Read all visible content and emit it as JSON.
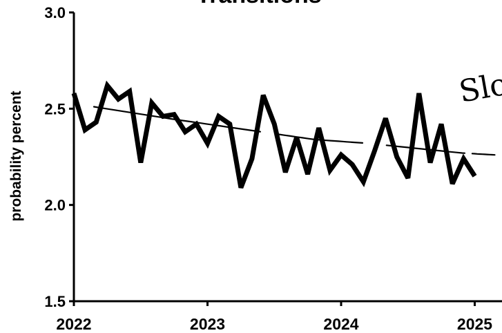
{
  "chart_data": {
    "type": "line",
    "title": "Transitions",
    "xlabel": "",
    "ylabel": "probability percent",
    "ylim": [
      1.5,
      3.0
    ],
    "xlim": [
      2022.0,
      2025.15
    ],
    "yticks": [
      "1.5",
      "2.0",
      "2.5",
      "3.0"
    ],
    "xticks": [
      "2022",
      "2023",
      "2024",
      "2025"
    ],
    "series": [
      {
        "x": [
          2022.0,
          2022.083,
          2022.167,
          2022.25,
          2022.333,
          2022.417,
          2022.5,
          2022.583,
          2022.667,
          2022.75,
          2022.833,
          2022.917,
          2023.0,
          2023.083,
          2023.167,
          2023.25,
          2023.333,
          2023.417,
          2023.5,
          2023.583,
          2023.667,
          2023.75,
          2023.833,
          2023.917,
          2024.0,
          2024.083,
          2024.167,
          2024.25,
          2024.333,
          2024.417,
          2024.5,
          2024.583,
          2024.667,
          2024.75,
          2024.833,
          2024.917,
          2025.0
        ],
        "values": [
          2.58,
          2.39,
          2.43,
          2.62,
          2.55,
          2.59,
          2.22,
          2.53,
          2.46,
          2.47,
          2.38,
          2.42,
          2.32,
          2.46,
          2.42,
          2.09,
          2.24,
          2.57,
          2.42,
          2.17,
          2.35,
          2.16,
          2.4,
          2.18,
          2.26,
          2.21,
          2.12,
          2.28,
          2.45,
          2.25,
          2.14,
          2.58,
          2.22,
          2.42,
          2.11,
          2.24,
          2.15
        ]
      }
    ],
    "trend": {
      "style": "hand-drawn dashed",
      "x": [
        2022.15,
        2022.7,
        2023.2,
        2023.8,
        2024.2,
        2024.9,
        2025.15
      ],
      "values": [
        2.51,
        2.45,
        2.4,
        2.34,
        2.32,
        2.27,
        2.26
      ]
    },
    "annotation": "Slo"
  }
}
